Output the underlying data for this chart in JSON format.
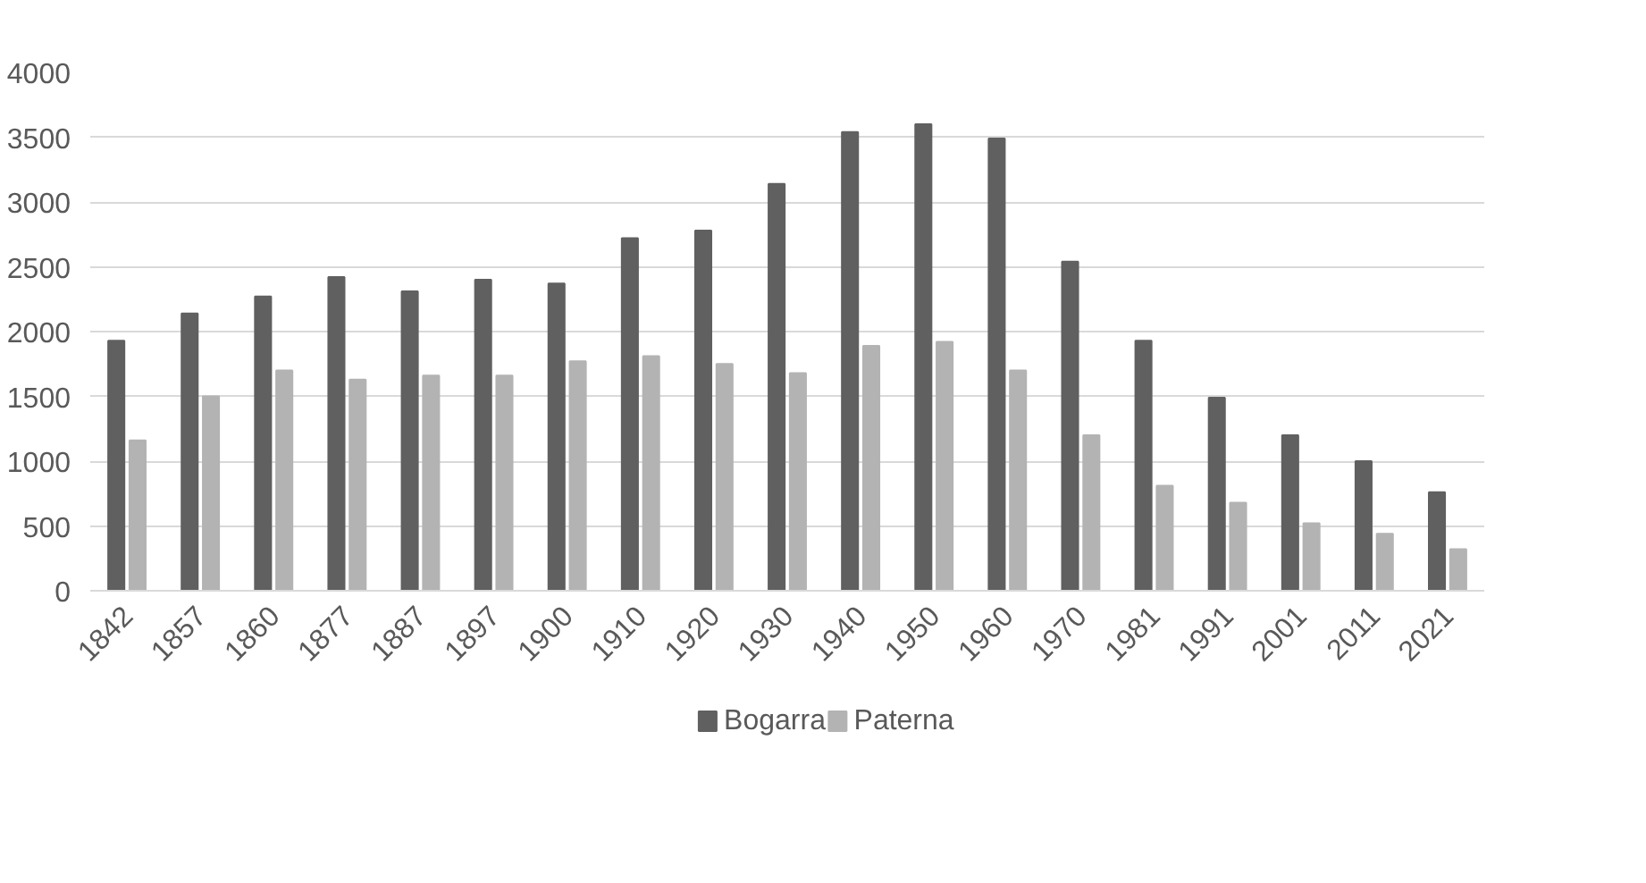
{
  "chart_data": {
    "type": "bar",
    "categories": [
      "1842",
      "1857",
      "1860",
      "1877",
      "1887",
      "1897",
      "1900",
      "1910",
      "1920",
      "1930",
      "1940",
      "1950",
      "1960",
      "1970",
      "1981",
      "1991",
      "2001",
      "2011",
      "2021"
    ],
    "series": [
      {
        "name": "Bogarra",
        "color": "#606060",
        "values": [
          1930,
          2140,
          2270,
          2420,
          2310,
          2400,
          2370,
          2720,
          2780,
          3140,
          3540,
          3600,
          3490,
          2540,
          1930,
          1490,
          1200,
          1000,
          760
        ]
      },
      {
        "name": "Paterna",
        "color": "#b3b3b3",
        "values": [
          1160,
          1500,
          1700,
          1630,
          1660,
          1660,
          1770,
          1810,
          1750,
          1680,
          1890,
          1920,
          1700,
          1200,
          810,
          680,
          520,
          440,
          320
        ]
      }
    ],
    "ylim": [
      0,
      4000
    ],
    "yticks": [
      0,
      500,
      1000,
      1500,
      2000,
      2500,
      3000,
      3500,
      4000
    ],
    "grid": "y",
    "legend": "bottom"
  }
}
